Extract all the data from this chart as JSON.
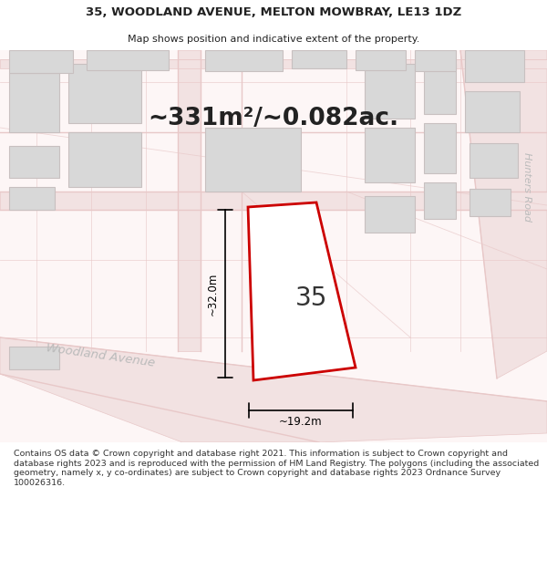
{
  "title_line1": "35, WOODLAND AVENUE, MELTON MOWBRAY, LE13 1DZ",
  "title_line2": "Map shows position and indicative extent of the property.",
  "area_text": "~331m²/~0.082ac.",
  "house_number": "35",
  "dim_width": "~19.2m",
  "dim_height": "~32.0m",
  "footer_text": "Contains OS data © Crown copyright and database right 2021. This information is subject to Crown copyright and database rights 2023 and is reproduced with the permission of HM Land Registry. The polygons (including the associated geometry, namely x, y co-ordinates) are subject to Crown copyright and database rights 2023 Ordnance Survey 100026316.",
  "map_bg": "#fdf6f6",
  "road_fill": "#f2e2e2",
  "road_edge": "#e8c8c8",
  "bld_fill": "#d8d8d8",
  "bld_edge": "#c8c0c0",
  "prop_fill": "#ffffff",
  "prop_edge": "#cc0000",
  "street_color": "#bbbbbb",
  "dim_color": "#111111",
  "area_color": "#222222",
  "num_color": "#333333",
  "title_color": "#222222",
  "footer_color": "#333333"
}
